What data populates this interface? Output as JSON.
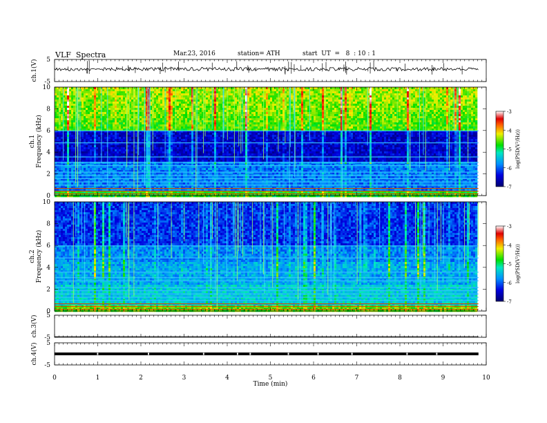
{
  "header": {
    "title": "VLF  Spectra",
    "date": "Mar.23, 2016",
    "station": "station= ATH",
    "start": "start  UT  =   8  : 10 : 1"
  },
  "chart_data": {
    "type": "heatmap",
    "panels": [
      {
        "id": "ch1v",
        "kind": "waveform",
        "ylabel": "ch.1(V)",
        "yticks": [
          "5",
          "-5"
        ],
        "ylim": [
          -5,
          5
        ]
      },
      {
        "id": "ch1",
        "kind": "spectrogram",
        "ylabel_line1": "ch.1",
        "ylabel_line2": "Frequency  (kHz)",
        "yticks": [
          "0",
          "2",
          "4",
          "6",
          "8",
          "10"
        ],
        "ylim": [
          0,
          10
        ],
        "colorbar": {
          "label": "log(PSD(V²/Hz))",
          "ticks": [
            "-3",
            "-4",
            "-5",
            "-6",
            "-7"
          ]
        }
      },
      {
        "id": "ch2",
        "kind": "spectrogram",
        "ylabel_line1": "ch.2",
        "ylabel_line2": "Frequency  (kHz)",
        "yticks": [
          "0",
          "2",
          "4",
          "6",
          "8",
          "10"
        ],
        "ylim": [
          0,
          10
        ],
        "colorbar": {
          "label": "log(PSD(V²/Hz))",
          "ticks": [
            "-3",
            "-4",
            "-5",
            "-6",
            "-7"
          ]
        }
      },
      {
        "id": "ch3v",
        "kind": "waveform",
        "ylabel": "ch.3(V)",
        "yticks": [
          "5",
          "-5"
        ],
        "ylim": [
          -5,
          5
        ]
      },
      {
        "id": "ch4v",
        "kind": "waveform",
        "ylabel": "ch.4(V)",
        "yticks": [
          "5",
          "-5"
        ],
        "ylim": [
          -5,
          5
        ]
      }
    ],
    "xaxis": {
      "label": "Time  (min)",
      "ticks": [
        "0",
        "1",
        "2",
        "3",
        "4",
        "5",
        "6",
        "7",
        "8",
        "9",
        "10"
      ],
      "xlim": [
        0,
        10
      ],
      "data_end": 9.82
    }
  }
}
